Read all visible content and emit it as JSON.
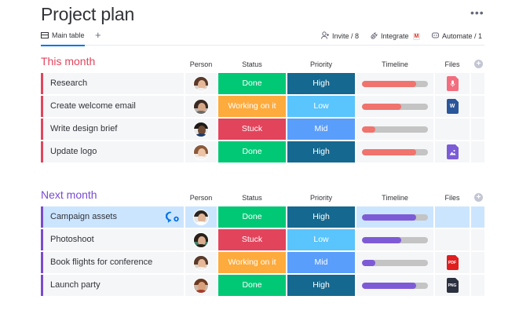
{
  "page": {
    "title": "Project plan"
  },
  "views": {
    "main_tab": "Main table",
    "add": "+"
  },
  "toolbar": {
    "invite": "Invite / 8",
    "integrate": "Integrate",
    "automate": "Automate / 1",
    "more": "•••"
  },
  "columns": {
    "person": "Person",
    "status": "Status",
    "priority": "Priority",
    "timeline": "Timeline",
    "files": "Files",
    "add": "+"
  },
  "colors": {
    "group1": "#e2445c",
    "group2": "#784bd1",
    "done": "#00c875",
    "working": "#fdab3d",
    "stuck": "#e2445c",
    "high": "#15688f",
    "low": "#5ac4fc",
    "mid": "#5a9efb",
    "timeline1": "#f0736d",
    "timeline2": "#7e5bd6"
  },
  "groups": [
    {
      "title": "This month",
      "rows": [
        {
          "name": "Research",
          "status": "Done",
          "priority": "High",
          "timeline_progress": 0.82,
          "file": "mic-file-icon"
        },
        {
          "name": "Create welcome email",
          "status": "Working on it",
          "priority": "Low",
          "timeline_progress": 0.6,
          "file": "word-doc-icon"
        },
        {
          "name": "Write design brief",
          "status": "Stuck",
          "priority": "Mid",
          "timeline_progress": 0.2,
          "file": ""
        },
        {
          "name": "Update logo",
          "status": "Done",
          "priority": "High",
          "timeline_progress": 0.82,
          "file": "image-file-icon"
        }
      ]
    },
    {
      "title": "Next month",
      "rows": [
        {
          "name": "Campaign assets",
          "status": "Done",
          "priority": "High",
          "timeline_progress": 0.82,
          "file": ""
        },
        {
          "name": "Photoshoot",
          "status": "Stuck",
          "priority": "Low",
          "timeline_progress": 0.6,
          "file": ""
        },
        {
          "name": "Book flights for conference",
          "status": "Working on it",
          "priority": "Mid",
          "timeline_progress": 0.2,
          "file": "pdf-file-icon"
        },
        {
          "name": "Launch party",
          "status": "Done",
          "priority": "High",
          "timeline_progress": 0.82,
          "file": "png-file-icon"
        }
      ]
    }
  ],
  "file_labels": {
    "word": "W",
    "pdf": "PDF",
    "png": "PNG"
  }
}
